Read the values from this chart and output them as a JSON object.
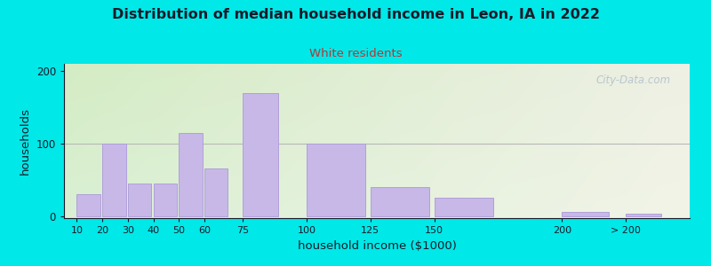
{
  "title": "Distribution of median household income in Leon, IA in 2022",
  "subtitle": "White residents",
  "xlabel": "household income ($1000)",
  "ylabel": "households",
  "bar_left_edges": [
    10,
    20,
    30,
    40,
    50,
    60,
    75,
    100,
    125,
    150,
    200,
    225
  ],
  "bar_widths": [
    10,
    10,
    10,
    10,
    10,
    10,
    15,
    25,
    25,
    25,
    20,
    15
  ],
  "bar_heights": [
    30,
    100,
    45,
    45,
    115,
    65,
    170,
    100,
    40,
    25,
    5,
    3
  ],
  "bar_color": "#c8b8e8",
  "bar_edgecolor": "#b0a0d8",
  "bg_color_outer": "#00e8e8",
  "bg_color_plot_topleft": "#d4ecc4",
  "bg_color_plot_topright": "#eef0e4",
  "bg_color_plot_botleft": "#daf0d4",
  "bg_color_plot_botright": "#f2f4e8",
  "title_color": "#1a1a2a",
  "subtitle_color": "#bb3333",
  "axis_label_color": "#1a1a2a",
  "tick_color": "#1a1a2a",
  "yticks": [
    0,
    100,
    200
  ],
  "ylim": [
    -3,
    210
  ],
  "xlim": [
    5,
    250
  ],
  "watermark": "City-Data.com",
  "xtick_positions": [
    10,
    20,
    30,
    40,
    50,
    60,
    75,
    100,
    125,
    150,
    200,
    225
  ],
  "xtick_labels": [
    "10",
    "20",
    "30",
    "40",
    "50",
    "60",
    "75",
    "100",
    "125",
    "150",
    "200",
    "> 200"
  ],
  "hline_y": 100,
  "hline_color": "#b8b8b8"
}
